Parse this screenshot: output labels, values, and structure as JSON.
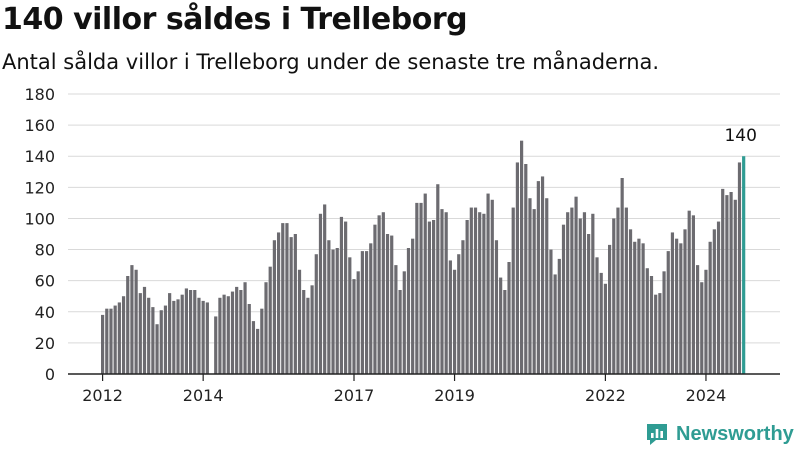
{
  "header": {
    "title": "140 villor såldes i Trelleborg",
    "subtitle": "Antal sålda villor i Trelleborg under de senaste tre månaderna."
  },
  "brand": {
    "name": "Newsworthy",
    "color": "#2f9c93",
    "icon": "newsworthy-logo-icon"
  },
  "chart_data": {
    "type": "bar",
    "title": "140 villor såldes i Trelleborg",
    "subtitle": "Antal sålda villor i Trelleborg under de senaste tre månaderna.",
    "xlabel": "",
    "ylabel": "",
    "ylim": [
      0,
      180
    ],
    "yticks": [
      0,
      20,
      40,
      60,
      80,
      100,
      120,
      140,
      160,
      180
    ],
    "xticks": [
      {
        "label": "2012",
        "index": 0
      },
      {
        "label": "2014",
        "index": 24
      },
      {
        "label": "2017",
        "index": 60
      },
      {
        "label": "2019",
        "index": 84
      },
      {
        "label": "2022",
        "index": 120
      },
      {
        "label": "2024",
        "index": 144
      }
    ],
    "grid": true,
    "bar_color": "#6c6b70",
    "highlight_color": "#2f9c93",
    "highlight_label": "140",
    "values": [
      38,
      42,
      42,
      44,
      46,
      50,
      63,
      70,
      67,
      52,
      56,
      49,
      43,
      32,
      41,
      44,
      52,
      47,
      48,
      51,
      55,
      54,
      54,
      49,
      47,
      46,
      0,
      37,
      49,
      51,
      50,
      53,
      56,
      54,
      59,
      45,
      34,
      29,
      42,
      59,
      69,
      86,
      91,
      97,
      97,
      88,
      90,
      67,
      54,
      49,
      57,
      77,
      103,
      109,
      86,
      80,
      81,
      101,
      98,
      75,
      61,
      66,
      79,
      79,
      84,
      96,
      102,
      104,
      90,
      89,
      70,
      54,
      66,
      81,
      87,
      110,
      110,
      116,
      98,
      99,
      122,
      106,
      104,
      73,
      67,
      77,
      86,
      99,
      107,
      107,
      104,
      103,
      116,
      112,
      86,
      62,
      54,
      72,
      107,
      136,
      150,
      135,
      113,
      106,
      124,
      127,
      113,
      80,
      64,
      74,
      96,
      104,
      107,
      114,
      100,
      104,
      90,
      103,
      75,
      65,
      58,
      83,
      100,
      107,
      126,
      107,
      93,
      85,
      87,
      84,
      68,
      63,
      51,
      52,
      66,
      79,
      91,
      87,
      84,
      93,
      105,
      102,
      70,
      59,
      67,
      85,
      93,
      98,
      119,
      115,
      117,
      112,
      136,
      140
    ]
  }
}
